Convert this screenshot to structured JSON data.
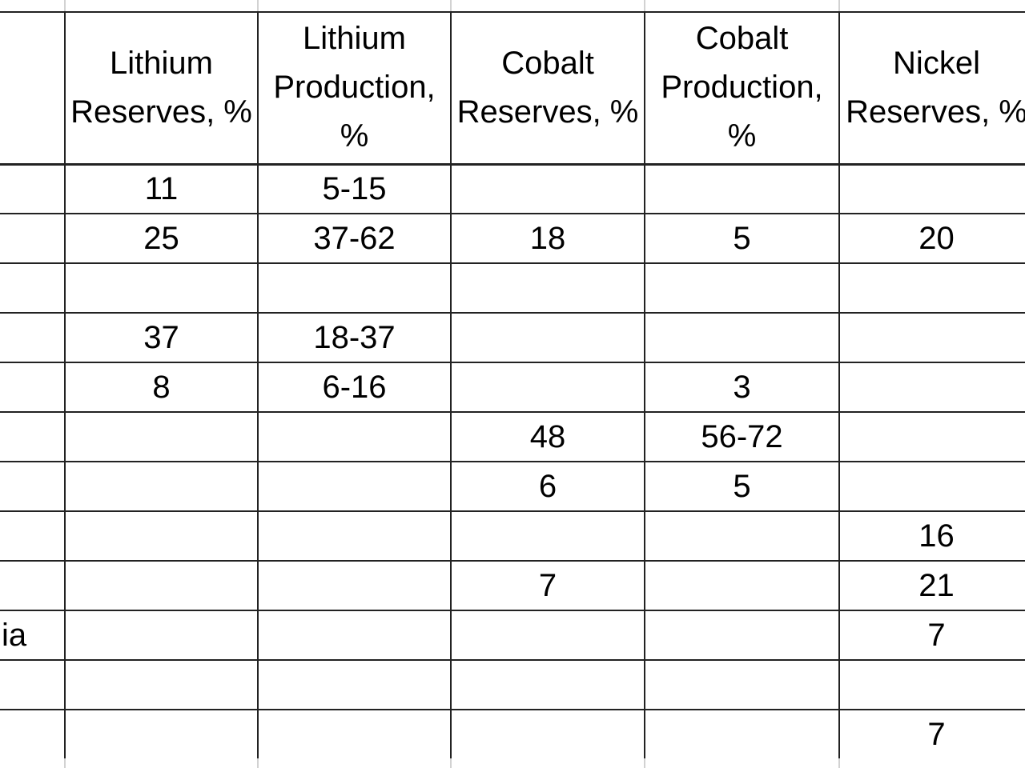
{
  "chart_data": {
    "type": "table",
    "title": "",
    "columns": [
      "",
      "Lithium Reserves, %",
      "Lithium Production, %",
      "Cobalt Reserves, %",
      "Cobalt Production, %",
      "Nickel Reserves, %"
    ],
    "rows": [
      [
        "",
        "11",
        "5-15",
        "",
        "",
        ""
      ],
      [
        "",
        "25",
        "37-62",
        "18",
        "5",
        "20"
      ],
      [
        "",
        "",
        "",
        "",
        "",
        ""
      ],
      [
        "",
        "37",
        "18-37",
        "",
        "",
        ""
      ],
      [
        "",
        "8",
        "6-16",
        "",
        "3",
        ""
      ],
      [
        "",
        "",
        "",
        "48",
        "56-72",
        ""
      ],
      [
        "",
        "",
        "",
        "6",
        "5",
        ""
      ],
      [
        "",
        "",
        "",
        "",
        "",
        "16"
      ],
      [
        "",
        "",
        "",
        "7",
        "",
        "21"
      ],
      [
        "ia",
        "",
        "",
        "",
        "",
        "7"
      ],
      [
        "",
        "",
        "",
        "",
        "",
        ""
      ],
      [
        "",
        "",
        "",
        "",
        "",
        "7"
      ]
    ],
    "layout_hints": {
      "first_column_clipped_left": true,
      "last_column_clipped_right": true,
      "grid": "all-borders"
    }
  },
  "colors": {
    "table_border": "#222222",
    "spreadsheet_gridline": "#d2d2d2",
    "text": "#000000",
    "background": "#ffffff"
  }
}
